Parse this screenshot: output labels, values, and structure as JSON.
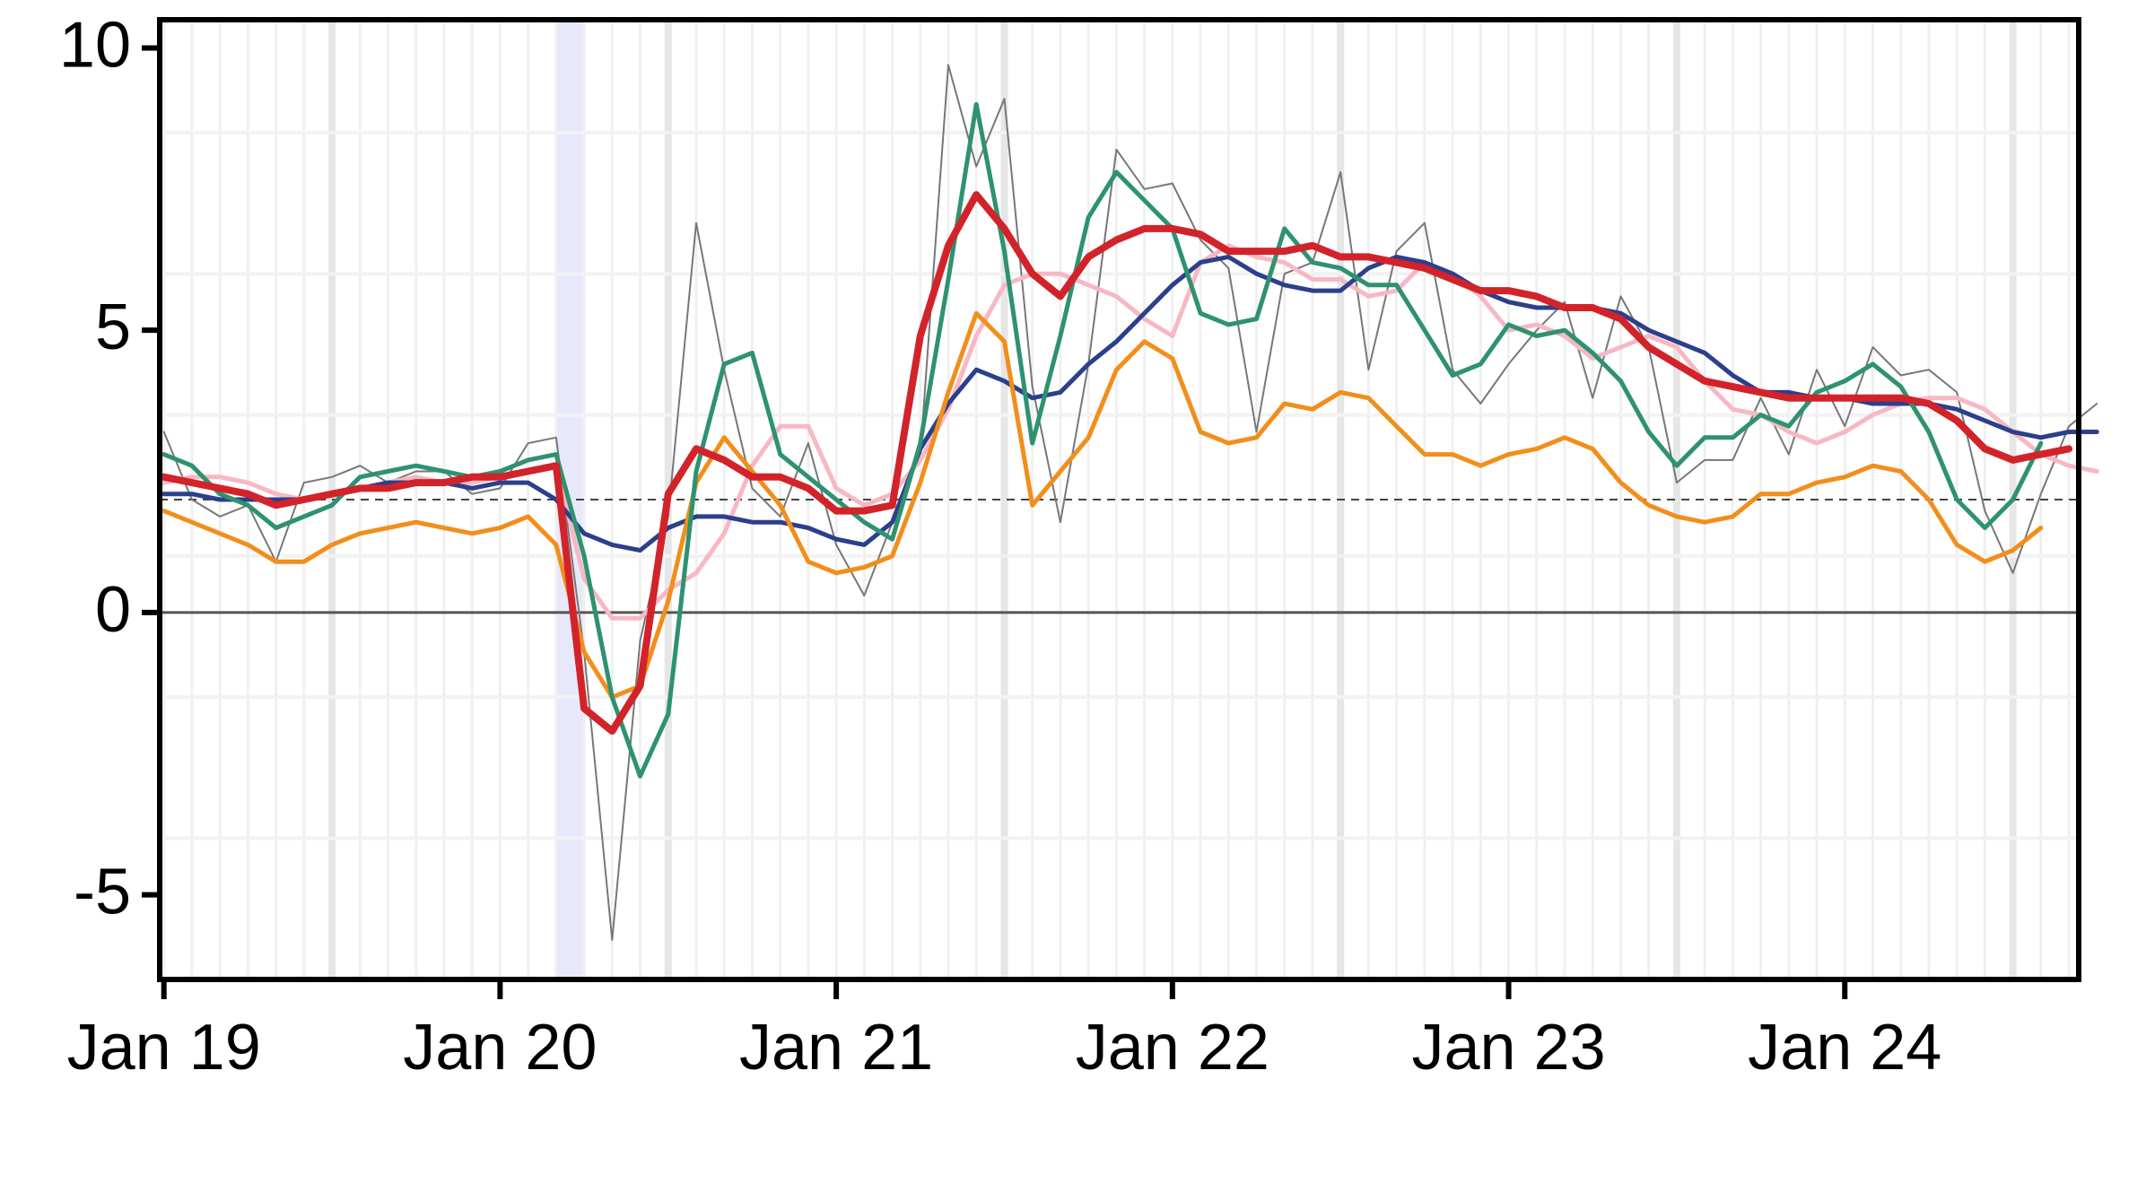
{
  "chart_data": {
    "type": "line",
    "x_start": "2019-01",
    "x_step": "month",
    "xlim": [
      "2019-01",
      "2024-09"
    ],
    "ylim": [
      -6.5,
      10.5
    ],
    "yticks": [
      -5,
      0,
      5,
      10
    ],
    "ytick_labels": [
      "-5",
      "0",
      "5",
      "10"
    ],
    "xticks": [
      "2019-01",
      "2020-01",
      "2021-01",
      "2022-01",
      "2023-01",
      "2024-01"
    ],
    "xtick_labels": [
      "Jan 19",
      "Jan 20",
      "Jan 21",
      "Jan 22",
      "Jan 23",
      "Jan 24"
    ],
    "reference_lines": [
      {
        "y": 0,
        "style": "solid",
        "color": "#555555"
      },
      {
        "y": 2,
        "style": "dashed",
        "color": "#444444"
      }
    ],
    "shaded_period": {
      "from": "2020-03",
      "to": "2020-04",
      "color": "#e8e8fb"
    },
    "grid": true,
    "series": [
      {
        "color": "#777777",
        "width": 2,
        "values": [
          3.2,
          2.0,
          1.7,
          1.9,
          0.9,
          2.3,
          2.4,
          2.6,
          2.3,
          2.5,
          2.5,
          2.1,
          2.2,
          3.0,
          3.1,
          -0.7,
          -5.8,
          -0.5,
          1.7,
          6.9,
          4.3,
          2.2,
          1.7,
          3.0,
          1.2,
          0.3,
          1.6,
          2.8,
          9.7,
          7.9,
          9.1,
          4.0,
          1.6,
          4.4,
          8.2,
          7.5,
          7.6,
          6.6,
          6.1,
          3.2,
          6.0,
          6.2,
          7.8,
          4.3,
          6.4,
          6.9,
          4.3,
          3.7,
          4.4,
          5.0,
          5.5,
          3.8,
          5.6,
          4.7,
          2.3,
          2.7,
          2.7,
          3.8,
          2.8,
          4.3,
          3.3,
          4.7,
          4.2,
          4.3,
          3.9,
          1.8,
          0.7,
          2.1,
          3.3,
          3.7
        ]
      },
      {
        "color": "#f7b8c4",
        "width": 5,
        "values": [
          2.3,
          2.4,
          2.4,
          2.3,
          2.1,
          2.0,
          2.1,
          2.2,
          2.3,
          2.4,
          2.3,
          2.3,
          2.4,
          2.5,
          2.6,
          0.6,
          -0.1,
          -0.1,
          0.4,
          0.7,
          1.4,
          2.6,
          3.3,
          3.3,
          2.2,
          1.9,
          2.1,
          2.7,
          3.6,
          4.9,
          5.8,
          6.0,
          6.0,
          5.8,
          5.6,
          5.2,
          4.9,
          6.2,
          6.5,
          6.3,
          6.2,
          5.9,
          5.9,
          5.6,
          5.7,
          6.2,
          6.0,
          5.6,
          5.0,
          5.1,
          4.9,
          4.5,
          4.7,
          4.9,
          4.7,
          4.1,
          3.6,
          3.5,
          3.2,
          3.0,
          3.2,
          3.5,
          3.7,
          3.8,
          3.8,
          3.6,
          3.2,
          2.8,
          2.6,
          2.5
        ]
      },
      {
        "color": "#2b3f8c",
        "width": 5,
        "values": [
          2.1,
          2.1,
          2.0,
          2.0,
          2.0,
          2.0,
          2.1,
          2.2,
          2.3,
          2.3,
          2.3,
          2.2,
          2.3,
          2.3,
          2.0,
          1.4,
          1.2,
          1.1,
          1.5,
          1.7,
          1.7,
          1.6,
          1.6,
          1.5,
          1.3,
          1.2,
          1.6,
          2.9,
          3.7,
          4.3,
          4.1,
          3.8,
          3.9,
          4.4,
          4.8,
          5.3,
          5.8,
          6.2,
          6.3,
          6.0,
          5.8,
          5.7,
          5.7,
          6.1,
          6.3,
          6.2,
          6.0,
          5.7,
          5.5,
          5.4,
          5.4,
          5.4,
          5.3,
          5.0,
          4.8,
          4.6,
          4.2,
          3.9,
          3.9,
          3.8,
          3.8,
          3.7,
          3.7,
          3.7,
          3.6,
          3.4,
          3.2,
          3.1,
          3.2,
          3.2
        ]
      },
      {
        "color": "#f28e1c",
        "width": 5,
        "values": [
          1.8,
          1.6,
          1.4,
          1.2,
          0.9,
          0.9,
          1.2,
          1.4,
          1.5,
          1.6,
          1.5,
          1.4,
          1.5,
          1.7,
          1.2,
          -0.7,
          -1.5,
          -1.3,
          0.2,
          2.3,
          3.1,
          2.5,
          1.9,
          0.9,
          0.7,
          0.8,
          1.0,
          2.3,
          3.9,
          5.3,
          4.8,
          1.9,
          2.5,
          3.1,
          4.3,
          4.8,
          4.5,
          3.2,
          3.0,
          3.1,
          3.7,
          3.6,
          3.9,
          3.8,
          3.3,
          2.8,
          2.8,
          2.6,
          2.8,
          2.9,
          3.1,
          2.9,
          2.3,
          1.9,
          1.7,
          1.6,
          1.7,
          2.1,
          2.1,
          2.3,
          2.4,
          2.6,
          2.5,
          2.0,
          1.2,
          0.9,
          1.1,
          1.5
        ]
      },
      {
        "color": "#2e9270",
        "width": 5,
        "values": [
          2.8,
          2.6,
          2.1,
          1.9,
          1.5,
          1.7,
          1.9,
          2.4,
          2.5,
          2.6,
          2.5,
          2.4,
          2.5,
          2.7,
          2.8,
          1.0,
          -1.5,
          -2.9,
          -1.8,
          2.5,
          4.4,
          4.6,
          2.8,
          2.4,
          2.0,
          1.6,
          1.3,
          3.0,
          5.9,
          9.0,
          6.4,
          3.0,
          4.9,
          7.0,
          7.8,
          7.3,
          6.8,
          5.3,
          5.1,
          5.2,
          6.8,
          6.2,
          6.1,
          5.8,
          5.8,
          5.0,
          4.2,
          4.4,
          5.1,
          4.9,
          5.0,
          4.6,
          4.1,
          3.2,
          2.6,
          3.1,
          3.1,
          3.5,
          3.3,
          3.9,
          4.1,
          4.4,
          4.0,
          3.2,
          2.0,
          1.5,
          2.0,
          3.0
        ]
      },
      {
        "color": "#d2232a",
        "width": 8,
        "values": [
          2.4,
          2.3,
          2.2,
          2.1,
          1.9,
          2.0,
          2.1,
          2.2,
          2.2,
          2.3,
          2.3,
          2.4,
          2.4,
          2.5,
          2.6,
          -1.7,
          -2.1,
          -1.3,
          2.1,
          2.9,
          2.7,
          2.4,
          2.4,
          2.2,
          1.8,
          1.8,
          1.9,
          4.9,
          6.5,
          7.4,
          6.8,
          6.0,
          5.6,
          6.3,
          6.6,
          6.8,
          6.8,
          6.7,
          6.4,
          6.4,
          6.4,
          6.5,
          6.3,
          6.3,
          6.2,
          6.1,
          5.9,
          5.7,
          5.7,
          5.6,
          5.4,
          5.4,
          5.2,
          4.7,
          4.4,
          4.1,
          4.0,
          3.9,
          3.8,
          3.8,
          3.8,
          3.8,
          3.8,
          3.7,
          3.4,
          2.9,
          2.7,
          2.8,
          2.9
        ]
      }
    ]
  }
}
